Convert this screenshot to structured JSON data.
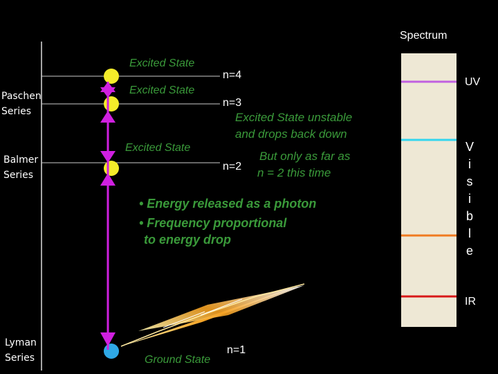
{
  "spectrum": {
    "title": "Spectrum",
    "uv_label": "UV",
    "ir_label": "IR",
    "visible_letters": [
      "V",
      "i",
      "s",
      "i",
      "b",
      "l",
      "e"
    ],
    "bg_color": "#eee8d5",
    "lines": [
      {
        "name": "uv-line",
        "color": "#c060e0"
      },
      {
        "name": "cyan-line",
        "color": "#33d6ee"
      },
      {
        "name": "orange-line",
        "color": "#f07a20"
      },
      {
        "name": "red-line",
        "color": "#d81818"
      }
    ]
  },
  "series": {
    "paschen": [
      "Paschen",
      "Series"
    ],
    "balmer": [
      "Balmer",
      "Series"
    ],
    "lyman": [
      "Lyman",
      "Series"
    ]
  },
  "levels": {
    "excited_4": "Excited State",
    "excited_3": "Excited State",
    "excited_2": "Excited State",
    "ground": "Ground State",
    "n4": "n=4",
    "n3": "n=3",
    "n2": "n=2",
    "n1": "n=1"
  },
  "notes": {
    "unstable": [
      "Excited State unstable",
      "and drops back down"
    ],
    "only_far": [
      "But only as far as",
      "n = 2 this time"
    ],
    "bullets": [
      "• Energy released as a photon",
      "• Frequency proportional",
      "to energy drop"
    ]
  },
  "colors": {
    "electron_excited": "#f4ec2a",
    "electron_ground": "#2fa8e6",
    "arrow": "#d020e0",
    "text_green": "#3a9a3a"
  }
}
